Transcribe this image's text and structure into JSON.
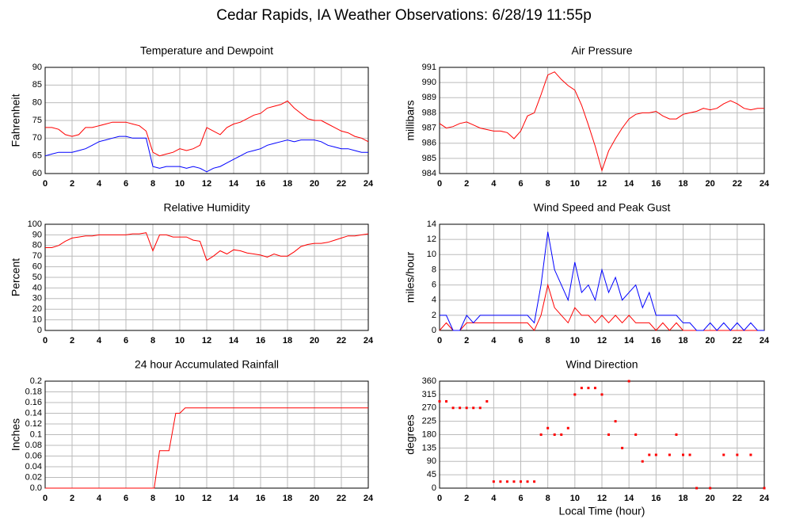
{
  "title": "Cedar Rapids, IA Weather Observations: 6/28/19 11:55p",
  "chart_data": [
    {
      "type": "line",
      "title": "Temperature and Dewpoint",
      "ylabel": "Fahrenheit",
      "x": [
        0,
        0.5,
        1,
        1.5,
        2,
        2.5,
        3,
        3.5,
        4,
        4.5,
        5,
        5.5,
        6,
        6.5,
        7,
        7.5,
        8,
        8.5,
        9,
        9.5,
        10,
        10.5,
        11,
        11.5,
        12,
        12.5,
        13,
        13.5,
        14,
        14.5,
        15,
        15.5,
        16,
        16.5,
        17,
        17.5,
        18,
        18.5,
        19,
        19.5,
        20,
        20.5,
        21,
        21.5,
        22,
        22.5,
        23,
        23.5,
        24
      ],
      "series": [
        {
          "color": "#ff0000",
          "values": [
            73,
            73,
            72.5,
            71,
            70.5,
            71,
            73,
            73,
            73.5,
            74,
            74.5,
            74.5,
            74.5,
            74,
            73.5,
            72,
            66,
            65,
            65.5,
            66,
            67,
            66.5,
            67,
            68,
            73,
            72,
            71,
            73,
            74,
            74.5,
            75.5,
            76.5,
            77,
            78.5,
            79,
            79.5,
            80.5,
            78.5,
            77,
            75.5,
            75,
            75,
            74,
            73,
            72,
            71.5,
            70.5,
            70,
            69
          ]
        },
        {
          "color": "#0000ff",
          "values": [
            65,
            65.5,
            66,
            66,
            66,
            66.5,
            67,
            68,
            69,
            69.5,
            70,
            70.5,
            70.5,
            70,
            70,
            70,
            62,
            61.5,
            62,
            62,
            62,
            61.5,
            62,
            61.5,
            60.5,
            61.5,
            62,
            63,
            64,
            65,
            66,
            66.5,
            67,
            68,
            68.5,
            69,
            69.5,
            69,
            69.5,
            69.5,
            69.5,
            69,
            68,
            67.5,
            67,
            67,
            66.5,
            66,
            66
          ]
        }
      ],
      "xlim": [
        0,
        24
      ],
      "xticks": [
        0,
        2,
        4,
        6,
        8,
        10,
        12,
        14,
        16,
        18,
        20,
        22,
        24
      ],
      "ylim": [
        60,
        90
      ],
      "yticks": [
        60,
        65,
        70,
        75,
        80,
        85,
        90
      ],
      "grid": true
    },
    {
      "type": "line",
      "title": "Air Pressure",
      "ylabel": "millibars",
      "x": [
        0,
        0.5,
        1,
        1.5,
        2,
        2.5,
        3,
        3.5,
        4,
        4.5,
        5,
        5.5,
        6,
        6.5,
        7,
        7.5,
        8,
        8.5,
        9,
        9.5,
        10,
        10.5,
        11,
        11.5,
        12,
        12.5,
        13,
        13.5,
        14,
        14.5,
        15,
        15.5,
        16,
        16.5,
        17,
        17.5,
        18,
        18.5,
        19,
        19.5,
        20,
        20.5,
        21,
        21.5,
        22,
        22.5,
        23,
        23.5,
        24
      ],
      "series": [
        {
          "color": "#ff0000",
          "values": [
            987.3,
            987,
            987.1,
            987.3,
            987.4,
            987.2,
            987,
            986.9,
            986.8,
            986.8,
            986.7,
            986.3,
            986.8,
            987.8,
            988,
            989.2,
            990.5,
            990.7,
            990.2,
            989.8,
            989.5,
            988.5,
            987.2,
            985.8,
            984.2,
            985.5,
            986.3,
            987,
            987.6,
            987.9,
            988,
            988,
            988.1,
            987.8,
            987.6,
            987.6,
            987.9,
            988,
            988.1,
            988.3,
            988.2,
            988.3,
            988.6,
            988.8,
            988.6,
            988.3,
            988.2,
            988.3,
            988.3
          ]
        }
      ],
      "xlim": [
        0,
        24
      ],
      "xticks": [
        0,
        2,
        4,
        6,
        8,
        10,
        12,
        14,
        16,
        18,
        20,
        22,
        24
      ],
      "ylim": [
        984,
        991
      ],
      "yticks": [
        984,
        985,
        986,
        987,
        988,
        989,
        990,
        991
      ],
      "grid": true
    },
    {
      "type": "line",
      "title": "Relative Humidity",
      "ylabel": "Percent",
      "x": [
        0,
        0.5,
        1,
        1.5,
        2,
        2.5,
        3,
        3.5,
        4,
        4.5,
        5,
        5.5,
        6,
        6.5,
        7,
        7.5,
        8,
        8.5,
        9,
        9.5,
        10,
        10.5,
        11,
        11.5,
        12,
        12.5,
        13,
        13.5,
        14,
        14.5,
        15,
        15.5,
        16,
        16.5,
        17,
        17.5,
        18,
        18.5,
        19,
        19.5,
        20,
        20.5,
        21,
        21.5,
        22,
        22.5,
        23,
        23.5,
        24
      ],
      "series": [
        {
          "color": "#ff0000",
          "values": [
            78,
            78,
            80,
            84,
            87,
            88,
            89,
            89,
            90,
            90,
            90,
            90,
            90,
            91,
            91,
            92,
            75,
            90,
            90,
            88,
            88,
            88,
            85,
            84,
            66,
            70,
            75,
            72,
            76,
            75,
            73,
            72,
            71,
            69,
            72,
            70,
            70,
            74,
            79,
            81,
            82,
            82,
            83,
            85,
            87,
            89,
            89,
            90,
            91
          ]
        }
      ],
      "xlim": [
        0,
        24
      ],
      "xticks": [
        0,
        2,
        4,
        6,
        8,
        10,
        12,
        14,
        16,
        18,
        20,
        22,
        24
      ],
      "ylim": [
        0,
        100
      ],
      "yticks": [
        0,
        10,
        20,
        30,
        40,
        50,
        60,
        70,
        80,
        90,
        100
      ],
      "grid": true
    },
    {
      "type": "line",
      "title": "Wind Speed and Peak Gust",
      "ylabel": "miles/hour",
      "x": [
        0,
        0.5,
        1,
        1.5,
        2,
        2.5,
        3,
        3.5,
        4,
        4.5,
        5,
        5.5,
        6,
        6.5,
        7,
        7.5,
        8,
        8.5,
        9,
        9.5,
        10,
        10.5,
        11,
        11.5,
        12,
        12.5,
        13,
        13.5,
        14,
        14.5,
        15,
        15.5,
        16,
        16.5,
        17,
        17.5,
        18,
        18.5,
        19,
        19.5,
        20,
        20.5,
        21,
        21.5,
        22,
        22.5,
        23,
        23.5,
        24
      ],
      "series": [
        {
          "color": "#ff0000",
          "values": [
            0,
            1,
            0,
            0,
            1,
            1,
            1,
            1,
            1,
            1,
            1,
            1,
            1,
            1,
            0,
            2,
            6,
            3,
            2,
            1,
            3,
            2,
            2,
            1,
            2,
            1,
            2,
            1,
            2,
            1,
            1,
            1,
            0,
            1,
            0,
            1,
            0,
            0,
            0,
            0,
            0,
            0,
            0,
            0,
            0,
            0,
            0,
            0,
            0
          ]
        },
        {
          "color": "#0000ff",
          "values": [
            2,
            2,
            0,
            0,
            2,
            1,
            2,
            2,
            2,
            2,
            2,
            2,
            2,
            2,
            1,
            6,
            13,
            8,
            6,
            4,
            9,
            5,
            6,
            4,
            8,
            5,
            7,
            4,
            5,
            6,
            3,
            5,
            2,
            2,
            2,
            2,
            1,
            1,
            0,
            0,
            1,
            0,
            1,
            0,
            1,
            0,
            1,
            0,
            0
          ]
        }
      ],
      "xlim": [
        0,
        24
      ],
      "xticks": [
        0,
        2,
        4,
        6,
        8,
        10,
        12,
        14,
        16,
        18,
        20,
        22,
        24
      ],
      "ylim": [
        0,
        14
      ],
      "yticks": [
        0,
        2,
        4,
        6,
        8,
        10,
        12,
        14
      ],
      "grid": true
    },
    {
      "type": "line",
      "title": "24 hour Accumulated Rainfall",
      "ylabel": "Inches",
      "x": [
        0,
        8.1,
        8.5,
        9.2,
        9.7,
        10.0,
        10.4,
        24
      ],
      "series": [
        {
          "color": "#ff0000",
          "values": [
            0,
            0,
            0.07,
            0.07,
            0.14,
            0.14,
            0.15,
            0.15
          ]
        }
      ],
      "xlim": [
        0,
        24
      ],
      "xticks": [
        0,
        2,
        4,
        6,
        8,
        10,
        12,
        14,
        16,
        18,
        20,
        22,
        24
      ],
      "ylim": [
        0,
        0.2
      ],
      "yticks": [
        {
          "value": 0,
          "label": "0.0"
        },
        0.02,
        0.04,
        0.06,
        0.08,
        0.1,
        0.12,
        0.14,
        0.16,
        0.18,
        0.2
      ],
      "grid": true
    },
    {
      "type": "scatter",
      "title": "Wind Direction",
      "ylabel": "degrees",
      "xlabel": "Local Time (hour)",
      "x": [
        0,
        0.5,
        1,
        1.5,
        2,
        2.5,
        3,
        3.5,
        4,
        4.5,
        5,
        5.5,
        6,
        6.5,
        7,
        7.5,
        8,
        8.5,
        9,
        9.5,
        10,
        10.5,
        11,
        11.5,
        12,
        12.5,
        13,
        13.5,
        14,
        14.5,
        15,
        15.5,
        16,
        17,
        17.5,
        18,
        18.5,
        19,
        20,
        21,
        22,
        23,
        24
      ],
      "series": [
        {
          "color": "#ff0000",
          "values": [
            292,
            292,
            270,
            270,
            270,
            270,
            270,
            292,
            22,
            22,
            22,
            22,
            22,
            22,
            22,
            180,
            202,
            180,
            180,
            202,
            315,
            337,
            337,
            337,
            315,
            180,
            225,
            135,
            360,
            180,
            90,
            112,
            112,
            112,
            180,
            112,
            112,
            0,
            0,
            112,
            112,
            112,
            0
          ]
        }
      ],
      "xlim": [
        0,
        24
      ],
      "xticks": [
        0,
        2,
        4,
        6,
        8,
        10,
        12,
        14,
        16,
        18,
        20,
        22,
        24
      ],
      "ylim": [
        0,
        360
      ],
      "yticks": [
        0,
        45,
        90,
        135,
        180,
        225,
        270,
        315,
        360
      ],
      "grid": true
    }
  ]
}
